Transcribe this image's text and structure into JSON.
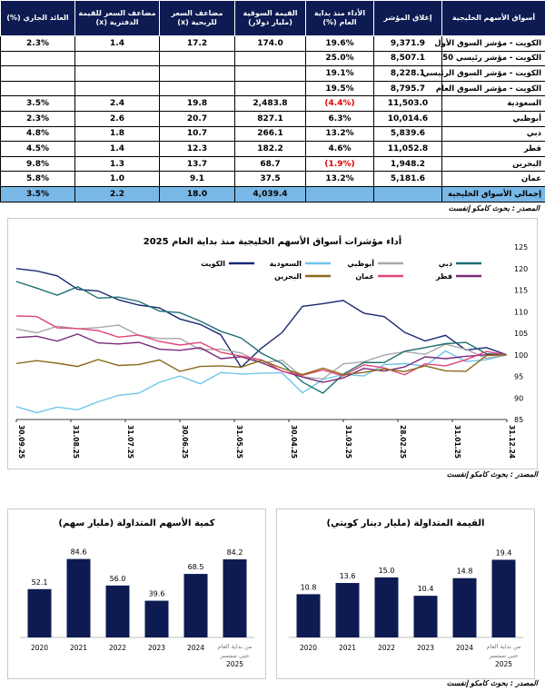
{
  "table": {
    "headers": [
      "أسواق الأسهم الخليجية",
      "إغلاق المؤشر",
      "الأداء منذ بداية العام (%)",
      "القيمة السوقية (مليار دولار)",
      "مضاعف السعر للربحية (x)",
      "مضاعف السعر للقيمة الدفترية (x)",
      "العائد الجاري (%)"
    ],
    "rows": [
      {
        "name": "الكويت - مؤشر السوق الأول",
        "close": "9,371.9",
        "ytd": "19.6%",
        "mcap": "174.0",
        "pe": "17.2",
        "pb": "1.4",
        "dy": "2.3%",
        "neg": false
      },
      {
        "name": "الكويت - مؤشر رئيسي 50",
        "close": "8,507.1",
        "ytd": "25.0%",
        "mcap": "",
        "pe": "",
        "pb": "",
        "dy": "",
        "neg": false
      },
      {
        "name": "الكويت - مؤشر السوق الرئيسي",
        "close": "8,228.1",
        "ytd": "19.1%",
        "mcap": "",
        "pe": "",
        "pb": "",
        "dy": "",
        "neg": false
      },
      {
        "name": "الكويت - مؤشر السوق العام",
        "close": "8,795.7",
        "ytd": "19.5%",
        "mcap": "",
        "pe": "",
        "pb": "",
        "dy": "",
        "neg": false
      },
      {
        "name": "السعودية",
        "close": "11,503.0",
        "ytd": "(4.4%)",
        "mcap": "2,483.8",
        "pe": "19.8",
        "pb": "2.4",
        "dy": "3.5%",
        "neg": true
      },
      {
        "name": "أبوظبي",
        "close": "10,014.6",
        "ytd": "6.3%",
        "mcap": "827.1",
        "pe": "20.7",
        "pb": "2.6",
        "dy": "2.3%",
        "neg": false
      },
      {
        "name": "دبي",
        "close": "5,839.6",
        "ytd": "13.2%",
        "mcap": "266.1",
        "pe": "10.7",
        "pb": "1.8",
        "dy": "4.8%",
        "neg": false
      },
      {
        "name": "قطر",
        "close": "11,052.8",
        "ytd": "4.6%",
        "mcap": "182.2",
        "pe": "12.3",
        "pb": "1.4",
        "dy": "4.5%",
        "neg": false
      },
      {
        "name": "البحرين",
        "close": "1,948.2",
        "ytd": "(1.9%)",
        "mcap": "68.7",
        "pe": "13.7",
        "pb": "1.3",
        "dy": "9.8%",
        "neg": true
      },
      {
        "name": "عمان",
        "close": "5,181.6",
        "ytd": "13.2%",
        "mcap": "37.5",
        "pe": "9.1",
        "pb": "1.0",
        "dy": "5.8%",
        "neg": false
      }
    ],
    "total": {
      "name": "إجمالي الأسواق الخليجية",
      "close": "",
      "ytd": "",
      "mcap": "4,039.4",
      "pe": "18.0",
      "pb": "2.2",
      "dy": "3.5%"
    }
  },
  "source_label": "المصدر : بحوث كامكو إنفست",
  "chart_data": [
    {
      "type": "line",
      "title": "أداء مؤشرات أسواق الأسهم الخليجية منذ بداية العام 2025",
      "ylim": [
        85,
        125
      ],
      "yticks": [
        85,
        90,
        95,
        100,
        105,
        110,
        115,
        120,
        125
      ],
      "x_axis_reversed": true,
      "xticks": [
        "31.12.24",
        "31.01.25",
        "28.02.25",
        "31.03.25",
        "30.04.25",
        "31.05.25",
        "30.06.25",
        "31.07.25",
        "31.08.25",
        "30.09.25"
      ],
      "legend_position": "top",
      "series": [
        {
          "name": "الكويت",
          "color": "#1a2a72",
          "values": [
            100,
            101,
            102,
            104,
            103,
            106,
            108,
            110,
            113,
            111,
            112,
            105,
            101,
            98,
            104,
            107,
            109,
            110,
            112,
            113,
            114,
            116,
            118,
            119,
            120
          ]
        },
        {
          "name": "السعودية",
          "color": "#6ec6ea",
          "values": [
            100,
            99,
            99,
            100,
            98,
            98,
            97,
            96,
            95,
            94,
            92,
            95,
            96,
            96,
            95,
            94,
            95,
            93,
            92,
            90,
            89,
            88,
            87,
            87,
            88
          ]
        },
        {
          "name": "أبوظبي",
          "color": "#a8a8a8",
          "values": [
            100,
            100,
            101,
            102,
            101,
            100,
            100,
            99,
            97,
            95,
            95,
            98,
            99,
            100,
            101,
            102,
            103,
            104,
            105,
            106,
            107,
            106,
            106,
            106,
            106
          ]
        },
        {
          "name": "دبي",
          "color": "#1d6f73",
          "values": [
            100,
            101,
            102,
            103,
            102,
            100,
            99,
            98,
            95,
            92,
            93,
            98,
            101,
            103,
            106,
            108,
            109,
            111,
            112,
            113,
            114,
            115,
            114,
            116,
            117
          ]
        },
        {
          "name": "قطر",
          "color": "#7a2a7a",
          "values": [
            100,
            100,
            99,
            100,
            99,
            97,
            97,
            96,
            95,
            94,
            94,
            97,
            98,
            99,
            100,
            101,
            101,
            102,
            102,
            103,
            103,
            104,
            104,
            104,
            104
          ]
        },
        {
          "name": "عمان",
          "color": "#e0457a",
          "values": [
            100,
            100,
            99,
            98,
            97,
            96,
            97,
            97,
            96,
            96,
            95,
            97,
            98,
            100,
            101,
            102,
            103,
            103,
            104,
            105,
            105,
            106,
            107,
            108,
            109
          ]
        },
        {
          "name": "البحرين",
          "color": "#8a6a1a",
          "values": [
            100,
            99,
            97,
            96,
            97,
            97,
            96,
            96,
            96,
            96,
            96,
            97,
            98,
            98,
            97,
            97,
            97,
            98,
            98,
            98,
            98,
            98,
            98,
            98,
            98
          ]
        }
      ]
    },
    {
      "type": "bar",
      "title": "كمية الأسهم المتداولة (مليار سهم)",
      "categories": [
        "2020",
        "2021",
        "2022",
        "2023",
        "2024",
        "من بداية العام حتى سبتمبر 2025"
      ],
      "values": [
        52.1,
        84.6,
        56.0,
        39.6,
        68.5,
        84.2
      ],
      "labels": [
        "52.1",
        "84.6",
        "56.0",
        "39.6",
        "68.5",
        "84.2"
      ],
      "ylim": [
        0,
        95
      ],
      "color": "#0d1b52"
    },
    {
      "type": "bar",
      "title": "القيمة المتداولة (مليار دينار كويتي)",
      "categories": [
        "2020",
        "2021",
        "2022",
        "2023",
        "2024",
        "من بداية العام حتى سبتمبر 2025"
      ],
      "values": [
        10.8,
        13.6,
        15.0,
        10.4,
        14.8,
        19.4
      ],
      "labels": [
        "10.8",
        "13.6",
        "15.0",
        "10.4",
        "14.8",
        "19.4"
      ],
      "ylim": [
        0,
        22
      ],
      "color": "#0d1b52"
    }
  ]
}
